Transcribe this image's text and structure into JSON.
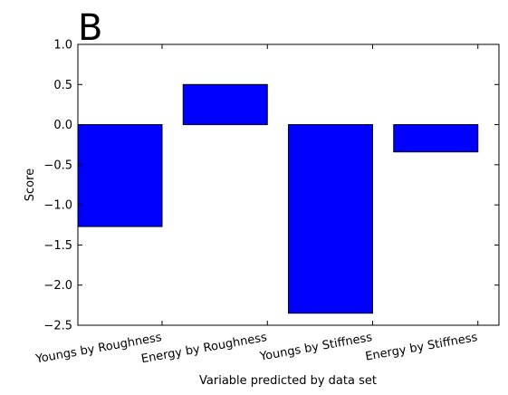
{
  "chart_data": {
    "type": "bar",
    "title": "B",
    "xlabel": "Variable predicted by data set",
    "ylabel": "Score",
    "categories": [
      "Youngs by Roughness",
      "Energy by Roughness",
      "Youngs by Stiffness",
      "Energy by Stiffness"
    ],
    "values": [
      -1.27,
      0.5,
      -2.35,
      -0.34
    ],
    "ylim": [
      -2.5,
      1.0
    ],
    "yticks": [
      "1.0",
      "0.5",
      "0.0",
      "−0.5",
      "−1.0",
      "−1.5",
      "−2.0",
      "−2.5"
    ],
    "ytick_values": [
      1.0,
      0.5,
      0.0,
      -0.5,
      -1.0,
      -1.5,
      -2.0,
      -2.5
    ],
    "bar_color": "#0000ff",
    "grid": false,
    "legend": "none"
  }
}
